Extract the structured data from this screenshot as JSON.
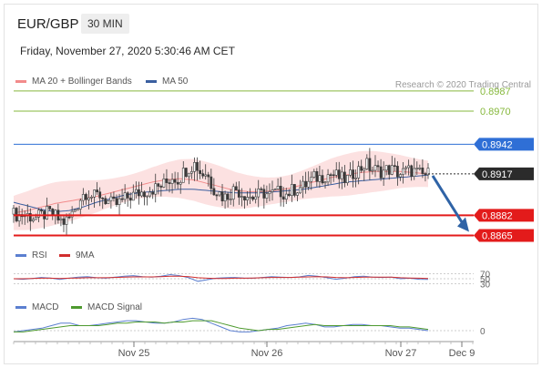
{
  "header": {
    "pair": "EUR/GBP",
    "timeframe": "30 MIN",
    "datetime": "Friday, November 27, 2020 5:30:46 AM CET",
    "copyright": "Research © 2020 Trading Central"
  },
  "legends": {
    "ma20_label": "MA 20 + Bollinger Bands",
    "ma50_label": "MA 50",
    "rsi_label": "RSI",
    "rsi_ma_label": "9MA",
    "macd_label": "MACD",
    "macd_signal_label": "MACD Signal"
  },
  "colors": {
    "ma20": "#f28b8b",
    "ma50": "#3b5fa0",
    "band_fill": "#fbdcdc",
    "candle": "#3a3a3a",
    "resistance": "#86b83c",
    "pivot": "#2f6fd6",
    "support": "#e31b1b",
    "current": "#2b2b2b",
    "arrow": "#2f63a6",
    "rsi": "#5b7fd0",
    "rsi_ma": "#d12e2e",
    "macd": "#5b7fd0",
    "macd_signal": "#4e9a2f"
  },
  "chart_data": {
    "type": "candlestick",
    "x_tick_labels": [
      "Nov 25",
      "Nov 26",
      "Nov 27",
      "Dec 9"
    ],
    "price_range": [
      0.886,
      0.899
    ],
    "levels": [
      {
        "label": "0.8987",
        "value": 0.8987,
        "kind": "resistance"
      },
      {
        "label": "0.8970",
        "value": 0.897,
        "kind": "resistance"
      },
      {
        "label": "0.8942",
        "value": 0.8942,
        "kind": "pivot"
      },
      {
        "label": "0.8917",
        "value": 0.8917,
        "kind": "current"
      },
      {
        "label": "0.8882",
        "value": 0.8882,
        "kind": "support"
      },
      {
        "label": "0.8865",
        "value": 0.8865,
        "kind": "support"
      }
    ],
    "forecast_target": 0.8865,
    "close_path": [
      0.8883,
      0.8882,
      0.8883,
      0.8881,
      0.888,
      0.8882,
      0.8884,
      0.8883,
      0.8878,
      0.8876,
      0.8881,
      0.8889,
      0.8899,
      0.8902,
      0.8897,
      0.89,
      0.8896,
      0.8892,
      0.8891,
      0.8894,
      0.8897,
      0.8899,
      0.8901,
      0.8902,
      0.8904,
      0.8905,
      0.8907,
      0.891,
      0.8915,
      0.8912,
      0.8919,
      0.8923,
      0.8926,
      0.8917,
      0.8918,
      0.8906,
      0.8902,
      0.8897,
      0.89,
      0.8905,
      0.8901,
      0.8899,
      0.8897,
      0.8899,
      0.8901,
      0.8899,
      0.8901,
      0.8902,
      0.89,
      0.8903,
      0.8905,
      0.8906,
      0.891,
      0.8914,
      0.8914,
      0.8916,
      0.8917,
      0.8915,
      0.8912,
      0.8913,
      0.8919,
      0.8921,
      0.8926,
      0.8921,
      0.892,
      0.8919,
      0.8921,
      0.892,
      0.8917,
      0.8919,
      0.892,
      0.8918,
      0.8916,
      0.8917
    ],
    "ma20_path": [
      0.8884,
      0.8886,
      0.8889,
      0.8892,
      0.8894,
      0.8896,
      0.8898,
      0.8901,
      0.8904,
      0.8907,
      0.891,
      0.8912,
      0.8913,
      0.8912,
      0.8909,
      0.8906,
      0.8903,
      0.8902,
      0.8902,
      0.8903,
      0.8905,
      0.8908,
      0.8911,
      0.8914,
      0.8916,
      0.8918,
      0.8919,
      0.8919,
      0.8919,
      0.8918,
      0.8917
    ],
    "ma50_path": [
      0.8893,
      0.889,
      0.8887,
      0.8885,
      0.8886,
      0.8889,
      0.8893,
      0.8896,
      0.8899,
      0.8901,
      0.8902,
      0.8903,
      0.8904,
      0.8904,
      0.8903,
      0.8902,
      0.8901,
      0.8901,
      0.8901,
      0.8902,
      0.8903,
      0.8904,
      0.8906,
      0.8908,
      0.891,
      0.8911,
      0.8912,
      0.8913,
      0.8914,
      0.8915,
      0.8916
    ],
    "rsi": {
      "ticks": [
        "70",
        "50",
        "30"
      ],
      "range": [
        0,
        100
      ],
      "values": [
        50,
        48,
        51,
        55,
        53,
        47,
        52,
        56,
        58,
        54,
        52,
        56,
        60,
        62,
        58,
        56,
        60,
        66,
        62,
        54,
        40,
        46,
        52,
        54,
        55,
        53,
        52,
        55,
        58,
        56,
        55,
        57,
        63,
        60,
        54,
        48,
        52,
        58,
        60,
        56,
        55,
        56,
        50,
        52,
        48,
        47
      ]
    },
    "rsi_ma_values": [
      50,
      50,
      51,
      52,
      52,
      51,
      52,
      53,
      54,
      54,
      54,
      55,
      56,
      57,
      57,
      57,
      58,
      60,
      60,
      58,
      54,
      52,
      51,
      51,
      52,
      52,
      53,
      54,
      55,
      55,
      55,
      56,
      57,
      58,
      57,
      55,
      54,
      55,
      56,
      56,
      56,
      56,
      54,
      53,
      52,
      51
    ],
    "macd": {
      "ticks": [
        "0"
      ],
      "range": [
        -0.0011,
        0.0011
      ],
      "values": [
        -0.0001,
        0.0,
        0.0001,
        0.0002,
        0.0004,
        0.0006,
        0.0006,
        0.0004,
        0.0004,
        0.0005,
        0.0006,
        0.0007,
        0.0008,
        0.0008,
        0.0007,
        0.0006,
        0.0006,
        0.0007,
        0.0009,
        0.001,
        0.0009,
        0.0006,
        0.0003,
        0.0,
        -0.0001,
        -0.0001,
        0.0,
        0.0001,
        0.0002,
        0.0004,
        0.0005,
        0.0006,
        0.0005,
        0.0003,
        0.0003,
        0.0004,
        0.0005,
        0.0005,
        0.0004,
        0.0004,
        0.0003,
        0.0002,
        0.0002,
        0.0001,
        0.0
      ]
    },
    "macd_signal_values": [
      -0.0001,
      -0.0001,
      0.0,
      0.0001,
      0.0002,
      0.0003,
      0.0004,
      0.0004,
      0.0004,
      0.0004,
      0.0005,
      0.0006,
      0.0006,
      0.0007,
      0.0007,
      0.0007,
      0.0006,
      0.0007,
      0.0007,
      0.0008,
      0.0008,
      0.0008,
      0.0006,
      0.0004,
      0.0002,
      0.0001,
      0.0,
      0.0001,
      0.0001,
      0.0002,
      0.0003,
      0.0004,
      0.0005,
      0.0004,
      0.0004,
      0.0004,
      0.0004,
      0.0004,
      0.0004,
      0.0004,
      0.0004,
      0.0003,
      0.0003,
      0.0002,
      0.0001
    ]
  }
}
